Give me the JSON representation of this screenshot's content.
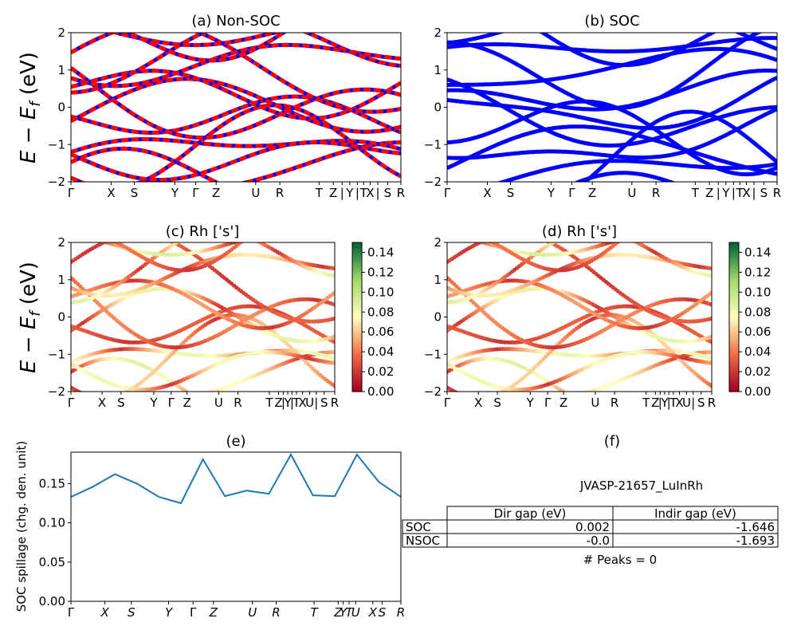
{
  "figure": {
    "ylabel_main": "E − E_f (eV)"
  },
  "chart_data": [
    {
      "id": "a",
      "type": "line",
      "title": "(a) Non-SOC",
      "ylim": [
        -2,
        2
      ],
      "yticks": [
        "2",
        "1",
        "0",
        "−1",
        "−2"
      ],
      "xticks": [
        "Γ",
        "X",
        "S",
        "Y",
        "Γ",
        "Z",
        "U",
        "R",
        "T",
        "Z",
        "|",
        "Y",
        "|",
        "T",
        "X",
        "|",
        "S",
        "R"
      ],
      "series_colors": [
        "#ff0000",
        "#0000ff"
      ],
      "legend": "none"
    },
    {
      "id": "b",
      "type": "line",
      "title": "(b) SOC",
      "ylim": [
        -2,
        2
      ],
      "yticks": [
        "2",
        "1",
        "0",
        "−1",
        "−2"
      ],
      "xticks": [
        "Γ",
        "X",
        "S",
        "Y",
        "Γ",
        "Z",
        "U",
        "R",
        "T",
        "Z",
        "|",
        "Y",
        "|",
        "T",
        "X",
        "|",
        "S",
        "R"
      ],
      "series_colors": [
        "#0000ff"
      ],
      "legend": "none"
    },
    {
      "id": "c",
      "type": "scatter",
      "title": "(c)  Rh ['s']",
      "ylim": [
        -2,
        2
      ],
      "yticks": [
        "2",
        "1",
        "0",
        "−1",
        "−2"
      ],
      "xticks": [
        "Γ",
        "X",
        "S",
        "Y",
        "Γ",
        "Z",
        "U",
        "R",
        "T",
        "Z",
        "|",
        "Y",
        "|",
        "T",
        "X",
        "U",
        "|",
        "S",
        "R"
      ],
      "colorbar": {
        "min": 0.0,
        "max": 0.15,
        "ticks": [
          "0.00",
          "0.02",
          "0.04",
          "0.06",
          "0.08",
          "0.10",
          "0.12",
          "0.14"
        ],
        "colormap": "RdYlGn"
      }
    },
    {
      "id": "d",
      "type": "scatter",
      "title": "(d) Rh ['s']",
      "ylim": [
        -2,
        2
      ],
      "yticks": [
        "2",
        "1",
        "0",
        "−1",
        "−2"
      ],
      "xticks": [
        "Γ",
        "X",
        "S",
        "Y",
        "Γ",
        "Z",
        "U",
        "R",
        "T",
        "Z",
        "|",
        "Y",
        "|",
        "T",
        "X",
        "U",
        "|",
        "S",
        "R"
      ],
      "colorbar": {
        "min": 0.0,
        "max": 0.15,
        "ticks": [
          "0.00",
          "0.02",
          "0.04",
          "0.06",
          "0.08",
          "0.10",
          "0.12",
          "0.14"
        ],
        "colormap": "RdYlGn"
      }
    },
    {
      "id": "e",
      "type": "line",
      "title": "(e)",
      "ylabel": "SOC spillage (chg. den. unit)",
      "ylim": [
        0,
        0.19
      ],
      "yticks": [
        "0.00",
        "0.05",
        "0.10",
        "0.15"
      ],
      "xticks": [
        "Γ",
        "X",
        "S",
        "Y",
        "Γ",
        "Z",
        "U",
        "R",
        "T",
        "Z",
        "Y",
        "T",
        "U",
        "X",
        "S",
        "R"
      ],
      "color": "#1f77b4",
      "x": [
        0,
        0.2,
        0.4,
        0.6,
        0.8,
        1.0,
        1.2,
        1.4,
        1.6,
        1.8,
        2.0,
        2.2,
        2.4,
        2.6,
        2.8,
        3.0
      ],
      "values": [
        0.133,
        0.146,
        0.162,
        0.15,
        0.133,
        0.125,
        0.181,
        0.134,
        0.141,
        0.137,
        0.187,
        0.135,
        0.134,
        0.187,
        0.152,
        0.133
      ]
    },
    {
      "id": "f",
      "type": "table",
      "title": "(f)",
      "subtitle": "JVASP-21657_LuInRh",
      "columns": [
        "",
        "Dir gap (eV)",
        "Indir gap (eV)"
      ],
      "rows": [
        [
          "SOC",
          "0.002",
          "-1.646"
        ],
        [
          "NSOC",
          "-0.0",
          "-1.693"
        ]
      ],
      "footer": "# Peaks = 0"
    }
  ]
}
